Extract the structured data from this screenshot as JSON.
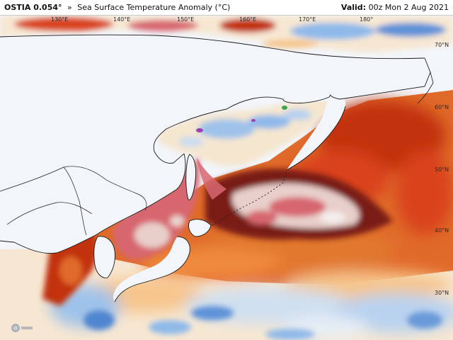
{
  "header": {
    "model": "OSTIA 0.054°",
    "separator": "»",
    "product": "Sea Surface Temperature Anomaly (°C)",
    "valid_label": "Valid:",
    "valid_time": "00z Mon 2 Aug 2021"
  },
  "map": {
    "longitude_labels": [
      "130°E",
      "140°E",
      "150°E",
      "160°E",
      "170°E",
      "180°"
    ],
    "latitude_labels": [
      "70°N",
      "60°N",
      "50°N",
      "40°N",
      "30°N"
    ]
  },
  "colors": {
    "background_land": "#f2f5fa",
    "coastline": "#1a1a1a",
    "anomaly_cold_deep": "#2e6cc8",
    "anomaly_cold": "#8fb9ea",
    "anomaly_neutral": "#f7f3ea",
    "anomaly_warm_light": "#f6c58b",
    "anomaly_warm": "#ef8a3c",
    "anomaly_hot": "#d9421a",
    "anomaly_very_hot": "#b52a10",
    "anomaly_extreme": "#7a1e18",
    "anomaly_pink": "#d76670",
    "anomaly_pale": "#ead3cf",
    "anomaly_purple": "#9b3fb3",
    "anomaly_green": "#3aa84a"
  }
}
